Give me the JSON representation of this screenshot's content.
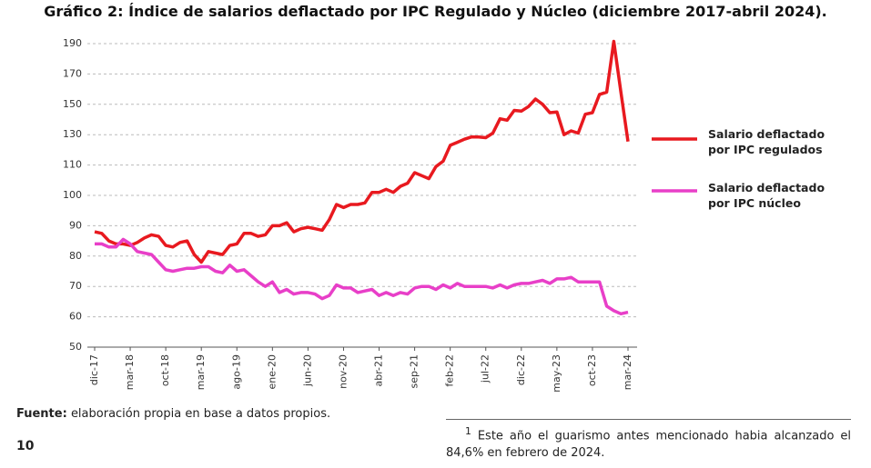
{
  "chart_data": {
    "type": "line",
    "title": "Gráfico 2: Índice de salarios deflactado por IPC Regulado y Núcleo (diciembre 2017-abril 2024).",
    "categories": [
      "dic-17",
      null,
      null,
      null,
      null,
      "mar-18",
      null,
      null,
      null,
      null,
      "oct-18",
      null,
      null,
      null,
      null,
      "mar-19",
      null,
      null,
      null,
      null,
      "ago-19",
      null,
      null,
      null,
      null,
      "ene-20",
      null,
      null,
      null,
      null,
      "jun-20",
      null,
      null,
      null,
      null,
      "nov-20",
      null,
      null,
      null,
      null,
      "abr-21",
      null,
      null,
      null,
      null,
      "sep-21",
      null,
      null,
      null,
      null,
      "feb-22",
      null,
      null,
      null,
      null,
      "jul-22",
      null,
      null,
      null,
      null,
      "dic-22",
      null,
      null,
      null,
      null,
      "may-23",
      null,
      null,
      null,
      null,
      "oct-23",
      null,
      null,
      null,
      null,
      "mar-24"
    ],
    "series": [
      {
        "name": "Salario deflactado por IPC regulados",
        "color": "#e8191f",
        "values": [
          88,
          87.5,
          85,
          84,
          84,
          83.5,
          84.5,
          86,
          87,
          86.5,
          83.5,
          83,
          84.5,
          85,
          80.5,
          78,
          81.5,
          81,
          80.5,
          83.5,
          84,
          87.5,
          87.5,
          86.5,
          87,
          90,
          90,
          91,
          88,
          89,
          89.5,
          89,
          88.5,
          92,
          97,
          96,
          97,
          97,
          97.5,
          101,
          101,
          102,
          101,
          103,
          104,
          107.5,
          106.5,
          105.5,
          109.5,
          112.5,
          123,
          125,
          127,
          128.5,
          128.5,
          128,
          131,
          140.5,
          139.5,
          146,
          145.5,
          148.5,
          153.5,
          150,
          144.5,
          145,
          130,
          132.5,
          131,
          143.5,
          144.5,
          156.5,
          158,
          191.5,
          158,
          125.5
        ]
      },
      {
        "name": "Salario deflactado por IPC núcleo",
        "color": "#e83fc8",
        "values": [
          84,
          84,
          83,
          83,
          85.5,
          84,
          81.5,
          81,
          80.5,
          78,
          75.5,
          75,
          75.5,
          76,
          76,
          76.5,
          76.5,
          75,
          74.5,
          77,
          75,
          75.5,
          73.5,
          71.5,
          70,
          71.5,
          68,
          69,
          67.5,
          68,
          68,
          67.5,
          66,
          67,
          70.5,
          69.5,
          69.5,
          68,
          68.5,
          69,
          67,
          68,
          67,
          68,
          67.5,
          69.5,
          70,
          70,
          69,
          70.5,
          69.5,
          71,
          70,
          70,
          70,
          70,
          69.5,
          70.5,
          69.5,
          70.5,
          71,
          71,
          71.5,
          72,
          71,
          72.5,
          72.5,
          73,
          71.5,
          71.5,
          71.5,
          71.5,
          63.5,
          62,
          61,
          61.5
        ]
      }
    ],
    "ylim": [
      50,
      190
    ],
    "yticks": [
      50,
      60,
      70,
      80,
      90,
      100,
      110,
      130,
      150,
      170,
      190
    ],
    "y_scale": "piecewise",
    "grid": true,
    "legend": "right"
  },
  "source_label": "Fuente:",
  "source_text": "elaboración propia en base a datos propios.",
  "page_number": "10",
  "footnote_marker": "1",
  "footnote_text": "Este año el guarismo antes mencionado habia alcanzado el 84,6% en febrero de 2024."
}
